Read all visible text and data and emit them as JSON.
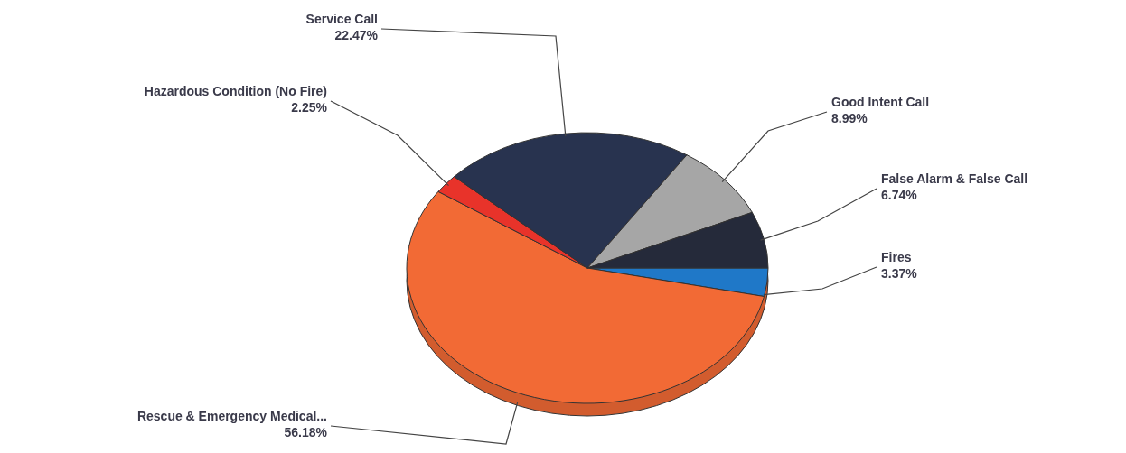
{
  "chart_data": {
    "type": "pie",
    "categories": [
      "Fires",
      "Rescue & Emergency Medical...",
      "Hazardous Condition (No Fire)",
      "Service Call",
      "Good Intent Call",
      "False Alarm & False Call"
    ],
    "values": [
      3.37,
      56.18,
      2.25,
      22.47,
      8.99,
      6.74
    ],
    "colors": [
      "#1f78c8",
      "#f26a35",
      "#e8332a",
      "#28334f",
      "#a6a6a6",
      "#252a3a"
    ],
    "value_labels": [
      "3.37%",
      "56.18%",
      "2.25%",
      "22.47%",
      "8.99%",
      "6.74%"
    ]
  }
}
